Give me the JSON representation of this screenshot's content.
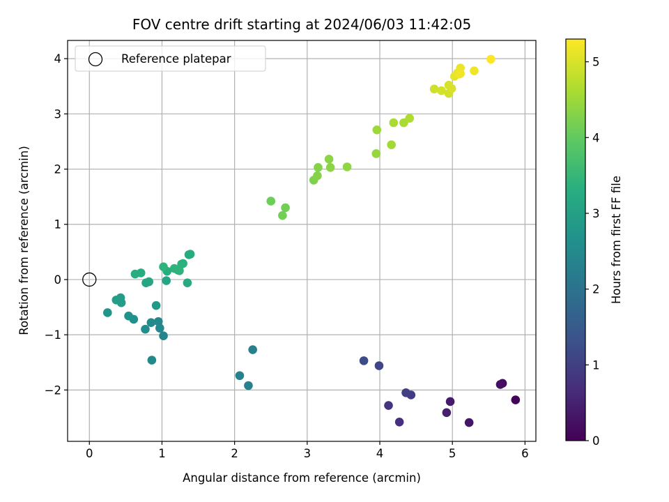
{
  "chart_data": {
    "type": "scatter",
    "title": "FOV centre drift starting at 2024/06/03 11:42:05",
    "xlabel": "Angular distance from reference (arcmin)",
    "ylabel": "Rotation from reference (arcmin)",
    "xlim": [
      -0.3,
      6.15
    ],
    "ylim": [
      -2.93,
      4.33
    ],
    "xticks": [
      0,
      1,
      2,
      3,
      4,
      5,
      6
    ],
    "xtick_labels": [
      "0",
      "1",
      "2",
      "3",
      "4",
      "5",
      "6"
    ],
    "yticks": [
      -2,
      -1,
      0,
      1,
      2,
      3,
      4
    ],
    "ytick_labels": [
      "−2",
      "−1",
      "0",
      "1",
      "2",
      "3",
      "4"
    ],
    "grid": true,
    "legend": {
      "placement": "top-left",
      "entries": [
        "Reference platepar"
      ]
    },
    "reference_point": {
      "x": 0,
      "y": 0
    },
    "colorbar": {
      "label": "Hours from first FF file",
      "colormap": "viridis",
      "range": [
        0,
        5.3
      ],
      "ticks": [
        0,
        1,
        2,
        3,
        4,
        5
      ],
      "tick_labels": [
        "0",
        "1",
        "2",
        "3",
        "4",
        "5"
      ]
    },
    "series": [
      {
        "x": [
          5.87,
          5.69,
          5.66,
          5.23,
          4.97,
          4.92,
          4.43,
          4.36,
          4.27,
          4.12,
          3.99,
          3.78,
          2.25,
          2.19,
          2.07,
          1.02,
          0.97,
          0.95,
          0.86,
          0.85,
          0.77,
          0.61,
          0.54,
          0.25,
          0.92,
          0.44,
          0.43,
          0.37,
          1.06,
          0.82,
          0.78,
          1.35,
          1.37,
          1.39,
          1.29,
          1.27,
          1.22,
          1.17,
          1.24,
          1.07,
          1.02,
          0.71,
          0.63,
          2.5,
          2.66,
          2.7,
          3.09,
          3.14,
          3.15,
          3.3,
          3.32,
          3.55,
          3.96,
          3.95,
          4.16,
          4.19,
          4.33,
          4.41,
          4.75,
          4.85,
          4.95,
          4.95,
          4.99,
          5.03,
          5.07,
          5.09,
          5.11,
          5.11,
          5.3,
          5.53
        ],
        "y": [
          -2.18,
          -1.88,
          -1.9,
          -2.59,
          -2.21,
          -2.41,
          -2.09,
          -2.05,
          -2.58,
          -2.28,
          -1.56,
          -1.47,
          -1.27,
          -1.92,
          -1.74,
          -1.02,
          -0.88,
          -0.76,
          -1.46,
          -0.78,
          -0.9,
          -0.72,
          -0.66,
          -0.6,
          -0.47,
          -0.42,
          -0.33,
          -0.37,
          -0.02,
          -0.04,
          -0.06,
          -0.06,
          0.45,
          0.46,
          0.29,
          0.28,
          0.17,
          0.2,
          0.16,
          0.15,
          0.23,
          0.12,
          0.1,
          1.42,
          1.16,
          1.3,
          1.8,
          1.88,
          2.03,
          2.18,
          2.03,
          2.04,
          2.71,
          2.28,
          2.44,
          2.84,
          2.84,
          2.92,
          3.45,
          3.42,
          3.52,
          3.37,
          3.46,
          3.68,
          3.74,
          3.72,
          3.83,
          3.73,
          3.78,
          3.99
        ],
        "hours": [
          0.05,
          0.15,
          0.2,
          0.3,
          0.38,
          0.45,
          0.95,
          1.0,
          0.7,
          0.8,
          1.1,
          1.2,
          2.3,
          2.3,
          2.35,
          2.4,
          2.45,
          2.45,
          2.5,
          2.5,
          2.55,
          2.65,
          2.7,
          2.75,
          2.85,
          2.9,
          2.9,
          2.95,
          3.1,
          3.1,
          3.1,
          3.2,
          3.25,
          3.25,
          3.35,
          3.35,
          3.35,
          3.4,
          3.4,
          3.3,
          3.4,
          3.3,
          3.3,
          4.1,
          4.15,
          4.15,
          4.25,
          4.3,
          4.3,
          4.35,
          4.35,
          4.4,
          4.5,
          4.45,
          4.55,
          4.6,
          4.6,
          4.65,
          4.9,
          4.95,
          5.0,
          4.95,
          5.0,
          5.1,
          5.1,
          5.15,
          5.15,
          5.2,
          5.2,
          5.3
        ]
      }
    ]
  }
}
